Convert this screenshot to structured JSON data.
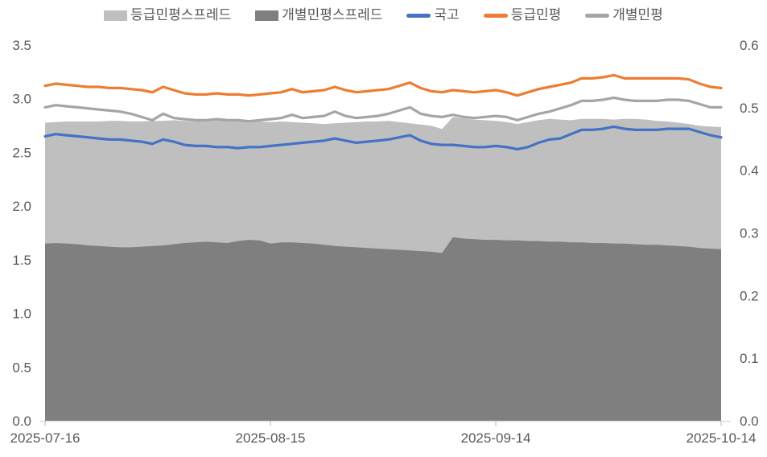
{
  "figure": {
    "background": "#ffffff"
  },
  "legend": {
    "text_color": "#595959"
  },
  "chart_data": {
    "type": "area+line combo",
    "title": "",
    "xlabel": "",
    "ylabel": "",
    "grid": false,
    "legend_position": "top-center",
    "n_points": 64,
    "x_tick_labels": [
      "2025-07-16",
      "2025-08-15",
      "2025-09-14",
      "2025-10-14"
    ],
    "x_tick_indices": [
      0,
      21,
      42,
      63
    ],
    "left_axis": {
      "min": 0.0,
      "max": 3.5,
      "step": 0.5,
      "ticks": [
        "3.5",
        "3.0",
        "2.5",
        "2.0",
        "1.5",
        "1.0",
        "0.5",
        "0.0"
      ]
    },
    "right_axis": {
      "min": 0.0,
      "max": 0.6,
      "step": 0.1,
      "ticks": [
        "0.6",
        "0.5",
        "0.4",
        "0.3",
        "0.2",
        "0.1",
        "0.0"
      ]
    },
    "axis_line_color": "#d6d6d6",
    "tick_color": "#bfbfbf",
    "series": [
      {
        "key": "rating-minpyeong-spread",
        "name": "등급민평스프레드",
        "type": "area",
        "axis": "right",
        "color": "#bfbfbf",
        "values": [
          0.476,
          0.477,
          0.478,
          0.478,
          0.478,
          0.478,
          0.479,
          0.479,
          0.478,
          0.478,
          0.479,
          0.479,
          0.48,
          0.479,
          0.478,
          0.479,
          0.48,
          0.479,
          0.478,
          0.478,
          0.478,
          0.477,
          0.478,
          0.477,
          0.476,
          0.475,
          0.474,
          0.475,
          0.476,
          0.477,
          0.478,
          0.478,
          0.479,
          0.477,
          0.475,
          0.473,
          0.471,
          0.466,
          0.485,
          0.483,
          0.481,
          0.48,
          0.479,
          0.477,
          0.474,
          0.477,
          0.48,
          0.482,
          0.481,
          0.48,
          0.482,
          0.482,
          0.482,
          0.481,
          0.482,
          0.482,
          0.481,
          0.479,
          0.478,
          0.476,
          0.474,
          0.471,
          0.47,
          0.469
        ]
      },
      {
        "key": "individual-minpyeong-spread",
        "name": "개별민평스프레드",
        "type": "area",
        "axis": "right",
        "color": "#7f7f7f",
        "values": [
          0.283,
          0.284,
          0.283,
          0.282,
          0.28,
          0.279,
          0.278,
          0.277,
          0.277,
          0.278,
          0.279,
          0.28,
          0.282,
          0.284,
          0.285,
          0.286,
          0.285,
          0.284,
          0.287,
          0.289,
          0.288,
          0.283,
          0.285,
          0.285,
          0.284,
          0.283,
          0.281,
          0.279,
          0.278,
          0.277,
          0.276,
          0.275,
          0.274,
          0.273,
          0.272,
          0.271,
          0.27,
          0.268,
          0.293,
          0.291,
          0.29,
          0.289,
          0.289,
          0.288,
          0.288,
          0.287,
          0.287,
          0.286,
          0.286,
          0.285,
          0.285,
          0.284,
          0.284,
          0.283,
          0.283,
          0.282,
          0.281,
          0.281,
          0.28,
          0.279,
          0.278,
          0.276,
          0.275,
          0.274
        ]
      },
      {
        "key": "treasury",
        "name": "국고",
        "type": "line",
        "axis": "left",
        "color": "#4472c4",
        "values": [
          2.65,
          2.67,
          2.66,
          2.65,
          2.64,
          2.63,
          2.62,
          2.62,
          2.61,
          2.6,
          2.58,
          2.62,
          2.6,
          2.57,
          2.56,
          2.56,
          2.55,
          2.55,
          2.54,
          2.55,
          2.55,
          2.56,
          2.57,
          2.58,
          2.59,
          2.6,
          2.61,
          2.63,
          2.61,
          2.59,
          2.6,
          2.61,
          2.62,
          2.64,
          2.66,
          2.61,
          2.58,
          2.57,
          2.57,
          2.56,
          2.55,
          2.55,
          2.56,
          2.55,
          2.53,
          2.55,
          2.59,
          2.62,
          2.63,
          2.67,
          2.71,
          2.71,
          2.72,
          2.74,
          2.72,
          2.71,
          2.71,
          2.71,
          2.72,
          2.72,
          2.72,
          2.69,
          2.66,
          2.64
        ]
      },
      {
        "key": "rating-minpyeong",
        "name": "등급민평",
        "type": "line",
        "axis": "left",
        "color": "#ed7d31",
        "values": [
          3.12,
          3.14,
          3.13,
          3.12,
          3.11,
          3.11,
          3.1,
          3.1,
          3.09,
          3.08,
          3.06,
          3.11,
          3.08,
          3.05,
          3.04,
          3.04,
          3.05,
          3.04,
          3.04,
          3.03,
          3.04,
          3.05,
          3.06,
          3.09,
          3.06,
          3.07,
          3.08,
          3.11,
          3.08,
          3.06,
          3.07,
          3.08,
          3.09,
          3.12,
          3.15,
          3.1,
          3.07,
          3.06,
          3.08,
          3.07,
          3.06,
          3.07,
          3.08,
          3.06,
          3.03,
          3.06,
          3.09,
          3.11,
          3.13,
          3.15,
          3.19,
          3.19,
          3.2,
          3.22,
          3.19,
          3.19,
          3.19,
          3.19,
          3.19,
          3.19,
          3.18,
          3.14,
          3.11,
          3.1
        ]
      },
      {
        "key": "individual-minpyeong",
        "name": "개별민평",
        "type": "line",
        "axis": "left",
        "color": "#a5a5a5",
        "values": [
          2.92,
          2.94,
          2.93,
          2.92,
          2.91,
          2.9,
          2.89,
          2.88,
          2.86,
          2.83,
          2.8,
          2.86,
          2.82,
          2.81,
          2.8,
          2.8,
          2.81,
          2.8,
          2.8,
          2.79,
          2.8,
          2.81,
          2.82,
          2.85,
          2.82,
          2.83,
          2.84,
          2.88,
          2.84,
          2.82,
          2.83,
          2.84,
          2.86,
          2.89,
          2.92,
          2.86,
          2.84,
          2.83,
          2.85,
          2.83,
          2.82,
          2.83,
          2.84,
          2.83,
          2.8,
          2.83,
          2.86,
          2.88,
          2.91,
          2.94,
          2.98,
          2.98,
          2.99,
          3.01,
          2.99,
          2.98,
          2.98,
          2.98,
          2.99,
          2.99,
          2.98,
          2.95,
          2.92,
          2.92
        ]
      }
    ]
  }
}
